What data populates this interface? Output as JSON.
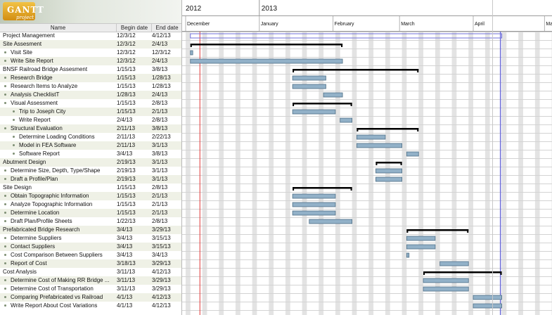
{
  "logo": {
    "title": "GANTT",
    "subtitle": "project"
  },
  "columns": {
    "name": "Name",
    "begin": "Begin date",
    "end": "End date"
  },
  "timeline": {
    "years": [
      {
        "label": "2012",
        "date": "2012-12-01"
      },
      {
        "label": "2013",
        "date": "2013-01-01"
      }
    ],
    "months": [
      {
        "label": "December",
        "date": "2012-12-01"
      },
      {
        "label": "January",
        "date": "2013-01-01"
      },
      {
        "label": "February",
        "date": "2013-02-01"
      },
      {
        "label": "March",
        "date": "2013-03-01"
      },
      {
        "label": "April",
        "date": "2013-04-01"
      },
      {
        "label": "May",
        "date": "2013-05-01"
      }
    ],
    "today": "2012-12-07"
  },
  "tasks": [
    {
      "name": "Project Management",
      "begin": "12/3/12",
      "end": "4/12/13",
      "level": 0,
      "type": "summary"
    },
    {
      "name": "Site Assesment",
      "begin": "12/3/12",
      "end": "2/4/13",
      "level": 0,
      "type": "summary"
    },
    {
      "name": "Visit Site",
      "begin": "12/3/12",
      "end": "12/3/12",
      "level": 1,
      "type": "task"
    },
    {
      "name": "Write Site Report",
      "begin": "12/3/12",
      "end": "2/4/13",
      "level": 1,
      "type": "task"
    },
    {
      "name": "BNSF Railroad Bridge Assesment",
      "begin": "1/15/13",
      "end": "3/8/13",
      "level": 0,
      "type": "summary"
    },
    {
      "name": "Research Bridge",
      "begin": "1/15/13",
      "end": "1/28/13",
      "level": 1,
      "type": "task"
    },
    {
      "name": "Research Items to Analyze",
      "begin": "1/15/13",
      "end": "1/28/13",
      "level": 1,
      "type": "task"
    },
    {
      "name": "Analysis ChecklistT",
      "begin": "1/28/13",
      "end": "2/4/13",
      "level": 1,
      "type": "task"
    },
    {
      "name": "Visual Assessment",
      "begin": "1/15/13",
      "end": "2/8/13",
      "level": 1,
      "type": "summary"
    },
    {
      "name": "Trip to Joseph City",
      "begin": "1/15/13",
      "end": "2/1/13",
      "level": 2,
      "type": "task"
    },
    {
      "name": "Write Report",
      "begin": "2/4/13",
      "end": "2/8/13",
      "level": 2,
      "type": "task"
    },
    {
      "name": "Structural Evaluation",
      "begin": "2/11/13",
      "end": "3/8/13",
      "level": 1,
      "type": "summary"
    },
    {
      "name": "Determine Loading Conditions",
      "begin": "2/11/13",
      "end": "2/22/13",
      "level": 2,
      "type": "task"
    },
    {
      "name": "Model in FEA Software",
      "begin": "2/11/13",
      "end": "3/1/13",
      "level": 2,
      "type": "task"
    },
    {
      "name": "Software Report",
      "begin": "3/4/13",
      "end": "3/8/13",
      "level": 2,
      "type": "task"
    },
    {
      "name": "Abutment Design",
      "begin": "2/19/13",
      "end": "3/1/13",
      "level": 0,
      "type": "summary"
    },
    {
      "name": "Determine Size, Depth, Type/Shape",
      "begin": "2/19/13",
      "end": "3/1/13",
      "level": 1,
      "type": "task"
    },
    {
      "name": "Draft a Profile/Plan",
      "begin": "2/19/13",
      "end": "3/1/13",
      "level": 1,
      "type": "task"
    },
    {
      "name": "Site Design",
      "begin": "1/15/13",
      "end": "2/8/13",
      "level": 0,
      "type": "summary"
    },
    {
      "name": "Obtain Topographic Information",
      "begin": "1/15/13",
      "end": "2/1/13",
      "level": 1,
      "type": "task"
    },
    {
      "name": "Analyze Topographic Information",
      "begin": "1/15/13",
      "end": "2/1/13",
      "level": 1,
      "type": "task"
    },
    {
      "name": "Determine Location",
      "begin": "1/15/13",
      "end": "2/1/13",
      "level": 1,
      "type": "task"
    },
    {
      "name": "Draft Plan/Profile Sheets",
      "begin": "1/22/13",
      "end": "2/8/13",
      "level": 1,
      "type": "task"
    },
    {
      "name": "Prefabricated Bridge Research",
      "begin": "3/4/13",
      "end": "3/29/13",
      "level": 0,
      "type": "summary"
    },
    {
      "name": "Determine Suppliers",
      "begin": "3/4/13",
      "end": "3/15/13",
      "level": 1,
      "type": "task"
    },
    {
      "name": "Contact Suppliers",
      "begin": "3/4/13",
      "end": "3/15/13",
      "level": 1,
      "type": "task"
    },
    {
      "name": "Cost Comparison Between Suppliers",
      "begin": "3/4/13",
      "end": "3/4/13",
      "level": 1,
      "type": "task"
    },
    {
      "name": "Report of Cost",
      "begin": "3/18/13",
      "end": "3/29/13",
      "level": 1,
      "type": "task"
    },
    {
      "name": "Cost Analysis",
      "begin": "3/11/13",
      "end": "4/12/13",
      "level": 0,
      "type": "summary"
    },
    {
      "name": "Determine Cost of Making RR Bridge ...",
      "begin": "3/11/13",
      "end": "3/29/13",
      "level": 1,
      "type": "task"
    },
    {
      "name": "Determine Cost of Transportation",
      "begin": "3/11/13",
      "end": "3/29/13",
      "level": 1,
      "type": "task"
    },
    {
      "name": "Comparing Prefabricated vs Railroad",
      "begin": "4/1/13",
      "end": "4/12/13",
      "level": 1,
      "type": "task"
    },
    {
      "name": "Write Report About Cost Variations",
      "begin": "4/1/13",
      "end": "4/12/13",
      "level": 1,
      "type": "task"
    }
  ],
  "colors": {
    "bar_fill": "#92b1c8",
    "bar_stroke": "#4f6f86",
    "summary": "#000000",
    "weekend": "#e3e3e3",
    "today_line": "#e03a3a",
    "grid": "#d3d3d3",
    "row_alt": "#eff1e6"
  }
}
